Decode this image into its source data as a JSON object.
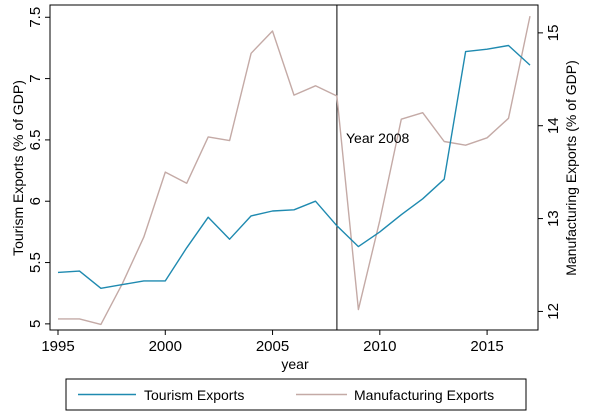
{
  "chart_data": {
    "type": "line",
    "title": "",
    "xlabel": "year",
    "ylabel_left": "Tourism Exports (% of GDP)",
    "ylabel_right": "Manufacturing Exports (% of GDP)",
    "xlim": [
      1995,
      2017
    ],
    "ylim_left": [
      4.95,
      7.6
    ],
    "ylim_right": [
      11.8,
      15.3
    ],
    "xticks": [
      1995,
      2000,
      2005,
      2010,
      2015
    ],
    "yticks_left": [
      "5",
      "5.5",
      "6",
      "6.5",
      "7",
      "7.5"
    ],
    "yticks_right": [
      "12",
      "13",
      "14",
      "15"
    ],
    "grid": false,
    "legend_position": "bottom",
    "annotation": {
      "x": 2008,
      "label": "Year 2008"
    },
    "series": [
      {
        "name": "Tourism Exports",
        "axis": "left",
        "color": "#1f8ab0",
        "x": [
          1995,
          1996,
          1997,
          1998,
          1999,
          2000,
          2001,
          2002,
          2003,
          2004,
          2005,
          2006,
          2007,
          2008,
          2009,
          2010,
          2011,
          2012,
          2013,
          2014,
          2015,
          2016,
          2017
        ],
        "values": [
          5.42,
          5.43,
          5.29,
          5.32,
          5.35,
          5.35,
          5.62,
          5.87,
          5.69,
          5.88,
          5.92,
          5.93,
          6.0,
          5.8,
          5.63,
          5.75,
          5.89,
          6.02,
          6.18,
          7.22,
          7.24,
          7.27,
          7.11
        ]
      },
      {
        "name": "Manufacturing Exports",
        "axis": "right",
        "color": "#c4aaa6",
        "x": [
          1995,
          1996,
          1997,
          1998,
          1999,
          2000,
          2001,
          2002,
          2003,
          2004,
          2005,
          2006,
          2007,
          2008,
          2009,
          2010,
          2011,
          2012,
          2013,
          2014,
          2015,
          2016,
          2017
        ],
        "values": [
          11.92,
          11.92,
          11.86,
          12.3,
          12.8,
          13.5,
          13.38,
          13.88,
          13.84,
          14.78,
          15.02,
          14.33,
          14.43,
          14.32,
          12.02,
          12.98,
          14.07,
          14.14,
          13.83,
          13.79,
          13.87,
          14.08,
          15.18
        ]
      }
    ]
  }
}
